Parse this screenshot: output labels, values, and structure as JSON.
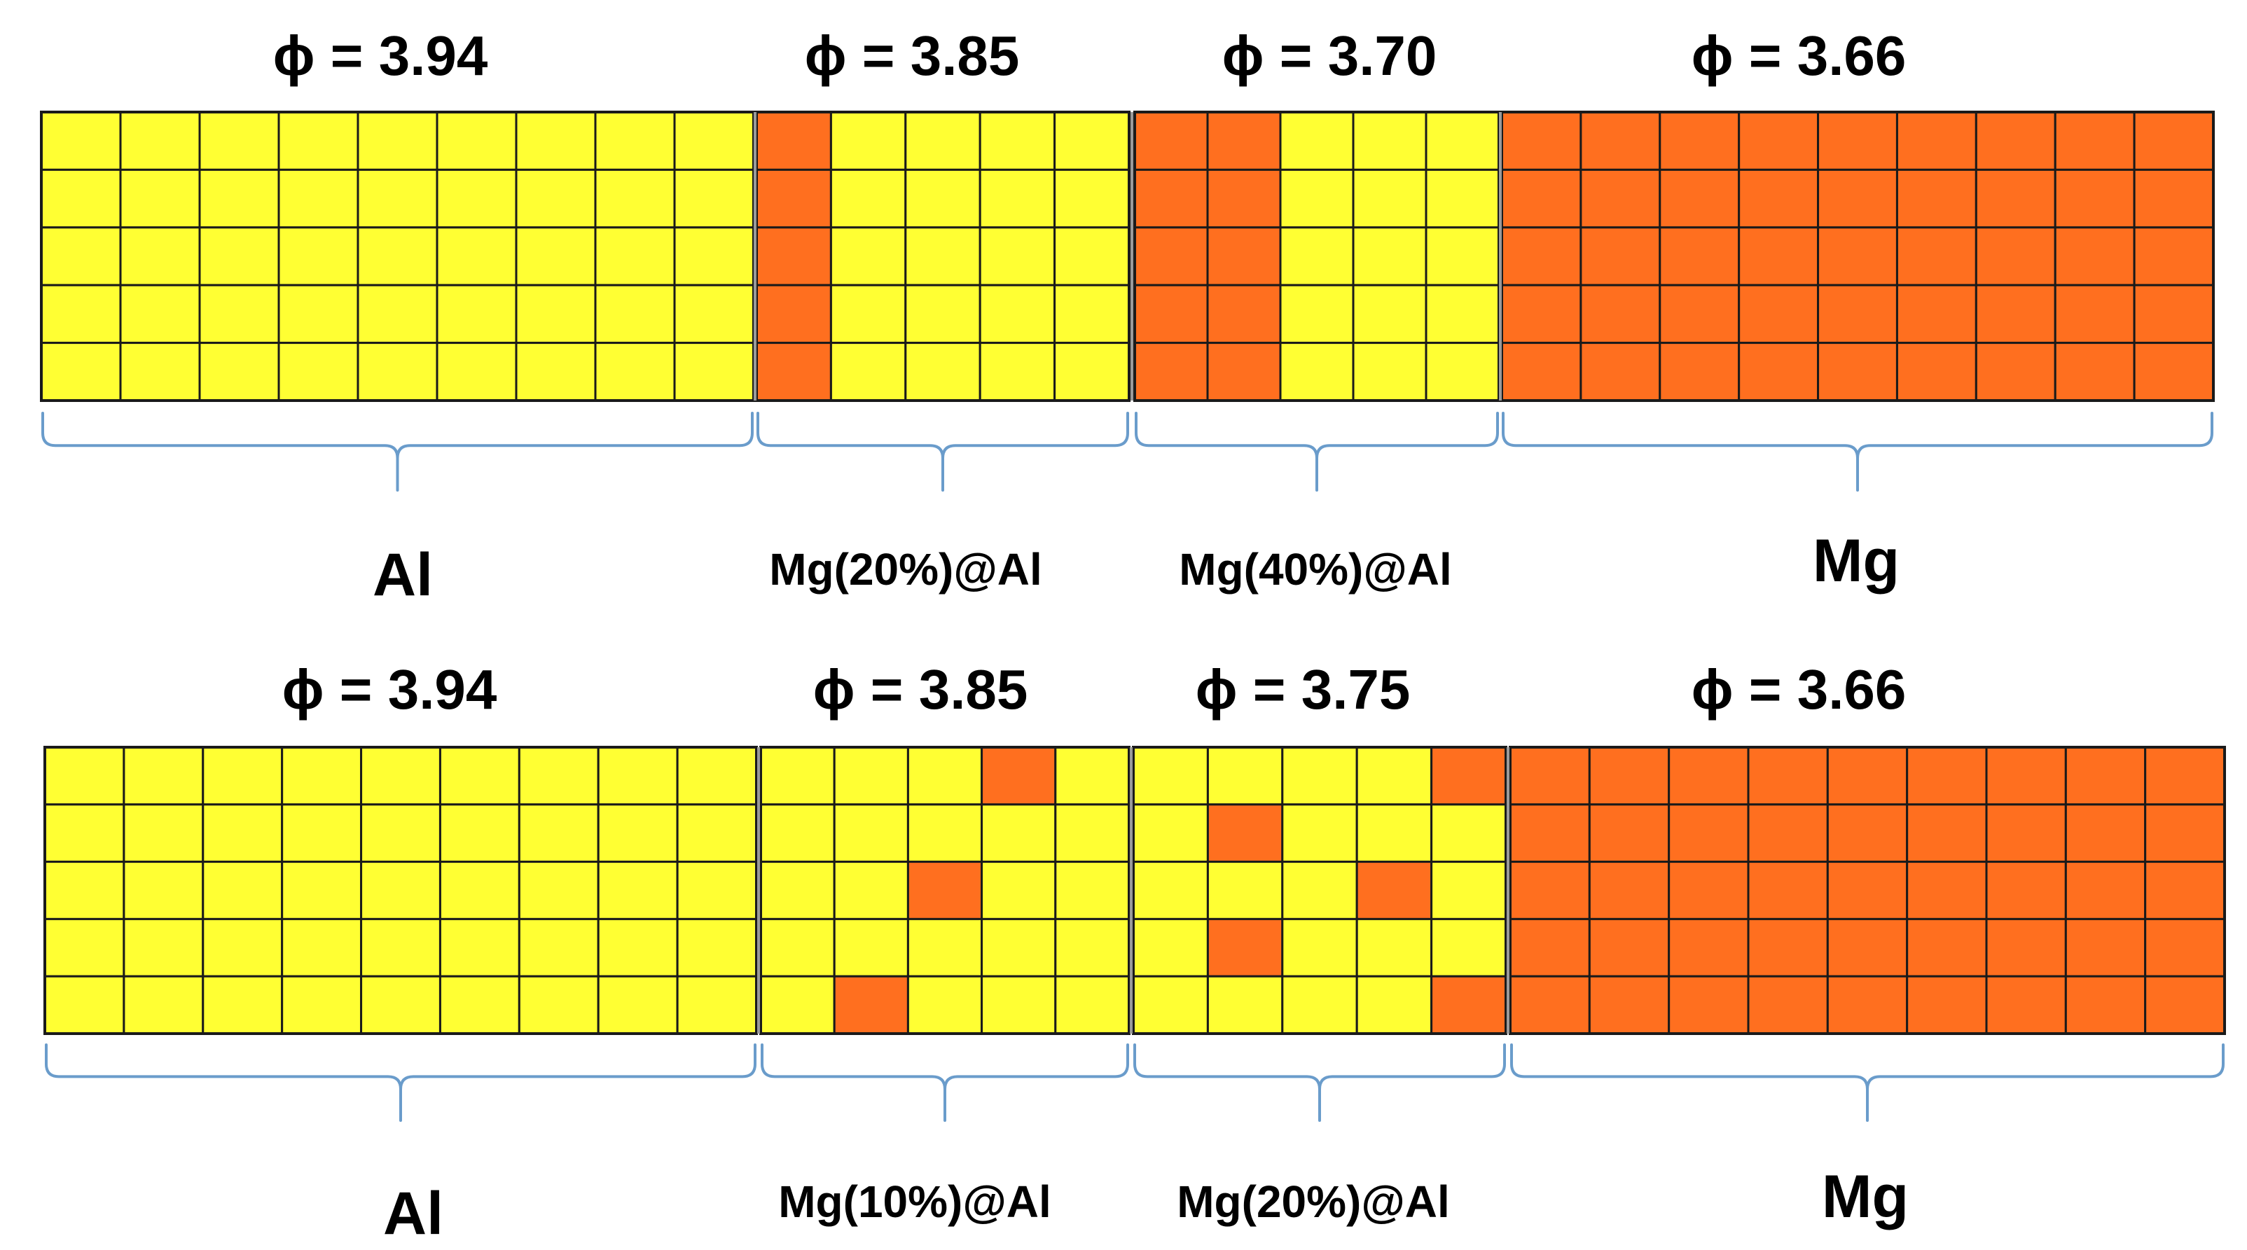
{
  "colors": {
    "al": "#FFFF33",
    "mg": "#FF6F1F",
    "grid": "#1a1a1a",
    "brace": "#6A9CCB",
    "separator": "#9a9a9a"
  },
  "rows": [
    {
      "id": "row-1",
      "segments": [
        {
          "id": "al",
          "phi": "ϕ = 3.94",
          "label": "Al",
          "label_size": "big",
          "cols": 9,
          "mg_cells": "all-al"
        },
        {
          "id": "mg20-al",
          "phi": "ϕ = 3.85",
          "label": "Mg(20%)@Al",
          "label_size": "small",
          "cols": 5,
          "mg_cells": [
            [
              0,
              0
            ],
            [
              1,
              0
            ],
            [
              2,
              0
            ],
            [
              3,
              0
            ],
            [
              4,
              0
            ]
          ]
        },
        {
          "id": "mg40-al",
          "phi": "ϕ = 3.70",
          "label": "Mg(40%)@Al",
          "label_size": "small",
          "cols": 5,
          "mg_cells": [
            [
              0,
              0
            ],
            [
              1,
              0
            ],
            [
              2,
              0
            ],
            [
              3,
              0
            ],
            [
              4,
              0
            ],
            [
              0,
              1
            ],
            [
              1,
              1
            ],
            [
              2,
              1
            ],
            [
              3,
              1
            ],
            [
              4,
              1
            ]
          ]
        },
        {
          "id": "mg",
          "phi": "ϕ = 3.66",
          "label": "Mg",
          "label_size": "big",
          "cols": 9,
          "mg_cells": "all-mg"
        }
      ]
    },
    {
      "id": "row-2",
      "segments": [
        {
          "id": "al",
          "phi": "ϕ = 3.94",
          "label": "Al",
          "label_size": "big",
          "cols": 9,
          "mg_cells": "all-al"
        },
        {
          "id": "mg10-al",
          "phi": "ϕ = 3.85",
          "label": "Mg(10%)@Al",
          "label_size": "small",
          "cols": 5,
          "mg_cells": [
            [
              0,
              3
            ],
            [
              2,
              2
            ],
            [
              4,
              1
            ]
          ]
        },
        {
          "id": "mg20-al",
          "phi": "ϕ = 3.75",
          "label": "Mg(20%)@Al",
          "label_size": "small",
          "cols": 5,
          "mg_cells": [
            [
              0,
              4
            ],
            [
              1,
              1
            ],
            [
              2,
              3
            ],
            [
              3,
              1
            ],
            [
              4,
              4
            ]
          ]
        },
        {
          "id": "mg",
          "phi": "ϕ = 3.66",
          "label": "Mg",
          "label_size": "big",
          "cols": 9,
          "mg_cells": "all-mg"
        }
      ]
    }
  ]
}
